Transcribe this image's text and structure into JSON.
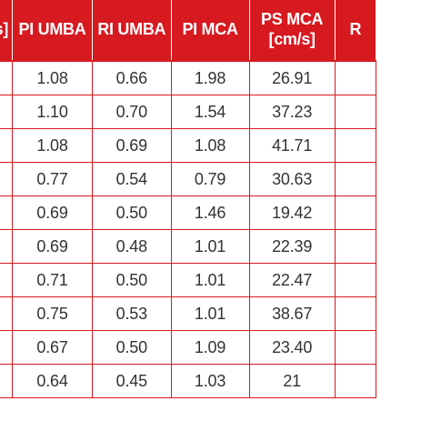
{
  "headers": {
    "edge_left": "s]",
    "pi_umba": "PI UMBA",
    "ri_umba": "RI UMBA",
    "pi_mca": "PI MCA",
    "ps_mca": "PS MCA",
    "ps_mca_unit": "[cm/s]",
    "edge_right": "R"
  },
  "rows": [
    {
      "pi_umba": "1.08",
      "ri_umba": "0.66",
      "pi_mca": "1.98",
      "ps_mca": "26.91"
    },
    {
      "pi_umba": "1.10",
      "ri_umba": "0.70",
      "pi_mca": "1.54",
      "ps_mca": "37.23"
    },
    {
      "pi_umba": "1.08",
      "ri_umba": "0.69",
      "pi_mca": "1.08",
      "ps_mca": "41.71"
    },
    {
      "pi_umba": "0.77",
      "ri_umba": "0.54",
      "pi_mca": "0.79",
      "ps_mca": "30.63"
    },
    {
      "pi_umba": "0.69",
      "ri_umba": "0.50",
      "pi_mca": "1.46",
      "ps_mca": "19.42"
    },
    {
      "pi_umba": "0.69",
      "ri_umba": "0.48",
      "pi_mca": "1.01",
      "ps_mca": "22.39"
    },
    {
      "pi_umba": "0.71",
      "ri_umba": "0.50",
      "pi_mca": "1.01",
      "ps_mca": "22.47"
    },
    {
      "pi_umba": "0.75",
      "ri_umba": "0.53",
      "pi_mca": "1.01",
      "ps_mca": "38.67"
    },
    {
      "pi_umba": "0.67",
      "ri_umba": "0.50",
      "pi_mca": "1.09",
      "ps_mca": "23.40"
    },
    {
      "pi_umba": "0.64",
      "ri_umba": "0.45",
      "pi_mca": "1.03",
      "ps_mca": "21"
    }
  ],
  "colors": {
    "header_bg": "#d71920",
    "header_text": "#ffffff",
    "border": "#d71920",
    "cell_text": "#333333"
  }
}
